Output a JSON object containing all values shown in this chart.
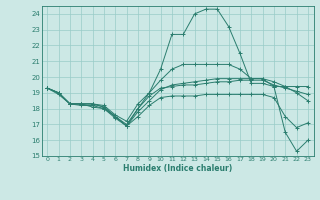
{
  "xlabel": "Humidex (Indice chaleur)",
  "xlim": [
    -0.5,
    23.5
  ],
  "ylim": [
    15,
    24.5
  ],
  "yticks": [
    15,
    16,
    17,
    18,
    19,
    20,
    21,
    22,
    23,
    24
  ],
  "xticks": [
    0,
    1,
    2,
    3,
    4,
    5,
    6,
    7,
    8,
    9,
    10,
    11,
    12,
    13,
    14,
    15,
    16,
    17,
    18,
    19,
    20,
    21,
    22,
    23
  ],
  "bg_color": "#cce8e5",
  "grid_color": "#99ccc8",
  "line_color": "#2a7d6e",
  "lines": [
    {
      "x": [
        0,
        1,
        2,
        3,
        4,
        5,
        6,
        7,
        8,
        9,
        10,
        11,
        12,
        13,
        14,
        15,
        16,
        17,
        18,
        19,
        20,
        21,
        22,
        23
      ],
      "y": [
        19.3,
        19.0,
        18.3,
        18.3,
        18.3,
        18.1,
        17.5,
        16.9,
        18.0,
        19.0,
        20.5,
        22.7,
        22.7,
        24.0,
        24.3,
        24.3,
        23.2,
        21.5,
        19.6,
        19.6,
        19.4,
        16.5,
        15.3,
        16.0
      ]
    },
    {
      "x": [
        0,
        1,
        2,
        3,
        4,
        5,
        6,
        7,
        8,
        9,
        10,
        11,
        12,
        13,
        14,
        15,
        16,
        17,
        18,
        19,
        20,
        21,
        22,
        23
      ],
      "y": [
        19.3,
        19.0,
        18.3,
        18.3,
        18.1,
        18.0,
        17.4,
        16.9,
        17.8,
        18.5,
        19.2,
        19.5,
        19.6,
        19.7,
        19.8,
        19.9,
        19.9,
        19.9,
        19.9,
        19.9,
        19.4,
        19.4,
        19.4,
        19.4
      ]
    },
    {
      "x": [
        0,
        1,
        2,
        3,
        4,
        5,
        6,
        7,
        8,
        9,
        10,
        11,
        12,
        13,
        14,
        15,
        16,
        17,
        18,
        19,
        20,
        21,
        22,
        23
      ],
      "y": [
        19.3,
        19.0,
        18.3,
        18.2,
        18.2,
        18.0,
        17.5,
        17.0,
        18.0,
        18.8,
        19.3,
        19.4,
        19.5,
        19.5,
        19.6,
        19.7,
        19.7,
        19.8,
        19.8,
        19.8,
        19.5,
        19.3,
        19.1,
        18.9
      ]
    },
    {
      "x": [
        0,
        1,
        2,
        3,
        4,
        5,
        6,
        7,
        8,
        9,
        10,
        11,
        12,
        13,
        14,
        15,
        16,
        17,
        18,
        19,
        20,
        21,
        22,
        23
      ],
      "y": [
        19.3,
        19.0,
        18.3,
        18.3,
        18.3,
        18.2,
        17.6,
        17.2,
        18.3,
        19.0,
        19.8,
        20.5,
        20.8,
        20.8,
        20.8,
        20.8,
        20.8,
        20.5,
        19.9,
        19.9,
        19.7,
        19.4,
        19.0,
        18.5
      ]
    },
    {
      "x": [
        0,
        1,
        2,
        3,
        4,
        5,
        6,
        7,
        8,
        9,
        10,
        11,
        12,
        13,
        14,
        15,
        16,
        17,
        18,
        19,
        20,
        21,
        22,
        23
      ],
      "y": [
        19.3,
        18.9,
        18.3,
        18.3,
        18.3,
        18.1,
        17.5,
        16.9,
        17.5,
        18.2,
        18.7,
        18.8,
        18.8,
        18.8,
        18.9,
        18.9,
        18.9,
        18.9,
        18.9,
        18.9,
        18.7,
        17.5,
        16.8,
        17.1
      ]
    }
  ]
}
